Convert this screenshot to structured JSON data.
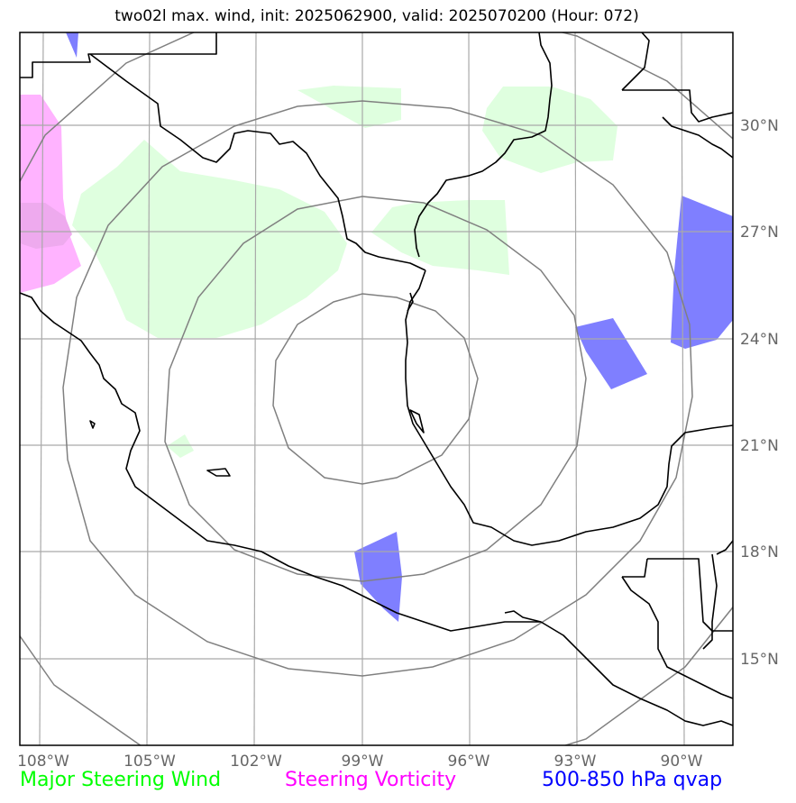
{
  "title": "two02l max. wind, init: 2025062900, valid: 2025070200 (Hour: 072)",
  "lon_labels": [
    "108°W",
    "105°W",
    "102°W",
    "99°W",
    "96°W",
    "93°W",
    "90°W"
  ],
  "lat_labels": [
    "30°N",
    "27°N",
    "24°N",
    "21°N",
    "18°N",
    "15°N"
  ],
  "legend": {
    "wind": {
      "label": "Major Steering Wind",
      "color": "#00ff00"
    },
    "vorticity": {
      "label": "Steering Vorticity",
      "color": "#ff00ff"
    },
    "qvap": {
      "label": "500-850 hPa qvap",
      "color": "#0000ff"
    }
  },
  "colors": {
    "wind_fill": "#dfffdf",
    "vort_fill": "#ffb3ff",
    "qvap_fill": "#7f7fff",
    "grid": "#a9a9a9",
    "rings": "#808080",
    "coast": "#000000"
  }
}
